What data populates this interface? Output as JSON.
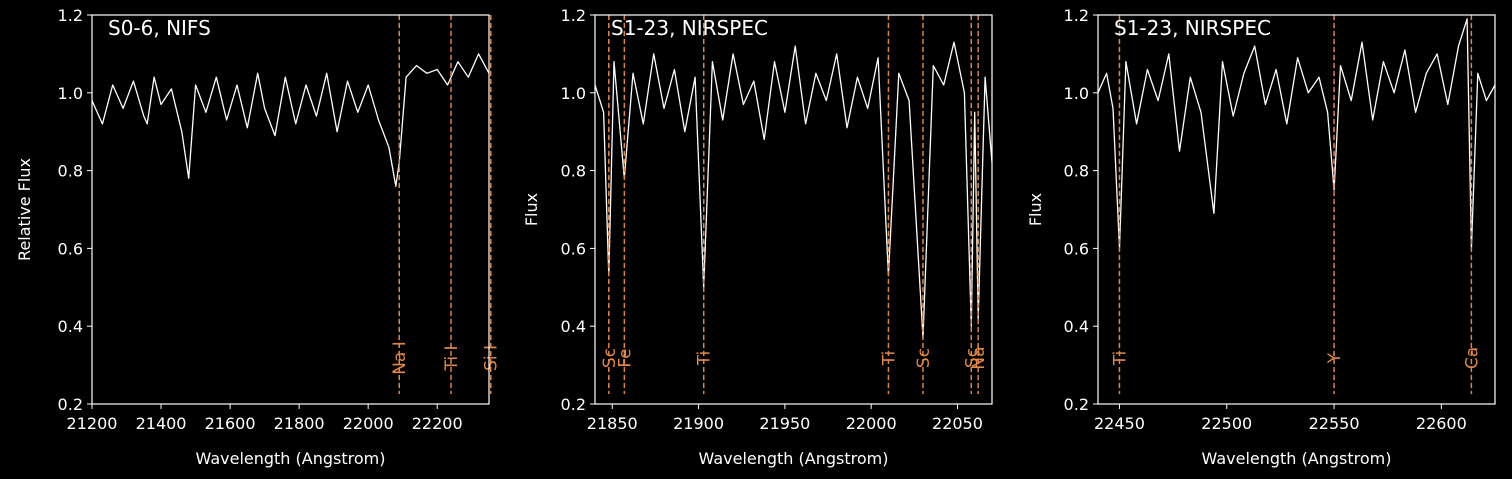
{
  "colors": {
    "background": "#000000",
    "axes": "#ffffff",
    "spectrum": "#ffffff",
    "line_marker": "#e0874a"
  },
  "chart_data": [
    {
      "type": "line",
      "title": "S0-6, NIFS",
      "xlabel": "Wavelength (Angstrom)",
      "ylabel": "Relative Flux",
      "xlim": [
        21200,
        22350
      ],
      "ylim": [
        0.2,
        1.2
      ],
      "xticks": [
        21200,
        21400,
        21600,
        21800,
        22000,
        22200
      ],
      "yticks": [
        0.2,
        0.4,
        0.6,
        0.8,
        1.0,
        1.2
      ],
      "xtick_labels": [
        "21200",
        "21400",
        "21600",
        "21800",
        "22000",
        "22200"
      ],
      "ytick_labels": [
        "0.2",
        "0.4",
        "0.6",
        "0.8",
        "1.0",
        "1.2"
      ],
      "lines": [
        {
          "label": "Si I",
          "x": 22355
        },
        {
          "label": "Na I",
          "x": 22090
        },
        {
          "label": "Ti I",
          "x": 22240
        }
      ],
      "series": [
        {
          "x": [
            21200,
            21230,
            21260,
            21290,
            21320,
            21350,
            21360,
            21380,
            21400,
            21430,
            21460,
            21480,
            21500,
            21530,
            21560,
            21590,
            21620,
            21650,
            21680,
            21700,
            21730,
            21760,
            21790,
            21820,
            21850,
            21880,
            21910,
            21940,
            21970,
            22000,
            22030,
            22060,
            22080,
            22090,
            22110,
            22140,
            22170,
            22200,
            22230,
            22260,
            22290,
            22320,
            22350
          ],
          "y": [
            0.98,
            0.92,
            1.02,
            0.96,
            1.03,
            0.94,
            0.92,
            1.04,
            0.97,
            1.01,
            0.9,
            0.78,
            1.02,
            0.95,
            1.04,
            0.93,
            1.02,
            0.91,
            1.05,
            0.96,
            0.89,
            1.04,
            0.92,
            1.02,
            0.94,
            1.05,
            0.9,
            1.03,
            0.95,
            1.02,
            0.93,
            0.86,
            0.76,
            0.82,
            1.04,
            1.07,
            1.05,
            1.06,
            1.02,
            1.08,
            1.04,
            1.1,
            1.05
          ]
        }
      ]
    },
    {
      "type": "line",
      "title": "S1-23, NIRSPEC",
      "xlabel": "Wavelength (Angstrom)",
      "ylabel": "Flux",
      "xlim": [
        21840,
        22070
      ],
      "ylim": [
        0.2,
        1.2
      ],
      "xticks": [
        21850,
        21900,
        21950,
        22000,
        22050
      ],
      "yticks": [
        0.2,
        0.4,
        0.6,
        0.8,
        1.0,
        1.2
      ],
      "xtick_labels": [
        "21850",
        "21900",
        "21950",
        "22000",
        "22050"
      ],
      "ytick_labels": [
        "0.2",
        "0.4",
        "0.6",
        "0.8",
        "1.0",
        "1.2"
      ],
      "lines": [
        {
          "label": "Sc",
          "x": 21848,
          "depth": 0.53
        },
        {
          "label": "Fe",
          "x": 21857,
          "depth": 0.78
        },
        {
          "label": "Ti",
          "x": 21903,
          "depth": 0.5
        },
        {
          "label": "Ti",
          "x": 22010,
          "depth": 0.53
        },
        {
          "label": "Sc",
          "x": 22030,
          "depth": 0.37
        },
        {
          "label": "Sc",
          "x": 22058,
          "depth": 0.4
        },
        {
          "label": "Na",
          "x": 22062,
          "depth": 0.42
        }
      ],
      "series": [
        {
          "x": [
            21840,
            21845,
            21848,
            21851,
            21857,
            21862,
            21868,
            21874,
            21880,
            21886,
            21892,
            21898,
            21903,
            21908,
            21914,
            21920,
            21926,
            21932,
            21938,
            21944,
            21950,
            21956,
            21962,
            21968,
            21974,
            21980,
            21986,
            21992,
            21998,
            22004,
            22010,
            22016,
            22022,
            22030,
            22036,
            22042,
            22048,
            22054,
            22058,
            22060,
            22062,
            22066,
            22070
          ],
          "y": [
            1.02,
            0.95,
            0.53,
            1.08,
            0.78,
            1.05,
            0.92,
            1.1,
            0.96,
            1.06,
            0.9,
            1.04,
            0.5,
            1.08,
            0.93,
            1.1,
            0.97,
            1.03,
            0.88,
            1.08,
            0.95,
            1.12,
            0.92,
            1.05,
            0.98,
            1.1,
            0.91,
            1.04,
            0.96,
            1.09,
            0.53,
            1.05,
            0.98,
            0.37,
            1.07,
            1.02,
            1.13,
            1.0,
            0.4,
            0.95,
            0.42,
            1.04,
            0.82
          ]
        }
      ]
    },
    {
      "type": "line",
      "title": "S1-23, NIRSPEC",
      "xlabel": "Wavelength (Angstrom)",
      "ylabel": "Flux",
      "xlim": [
        22440,
        22625
      ],
      "ylim": [
        0.2,
        1.2
      ],
      "xticks": [
        22450,
        22500,
        22550,
        22600
      ],
      "yticks": [
        0.2,
        0.4,
        0.6,
        0.8,
        1.0,
        1.2
      ],
      "xtick_labels": [
        "22450",
        "22500",
        "22550",
        "22600"
      ],
      "ytick_labels": [
        "0.2",
        "0.4",
        "0.6",
        "0.8",
        "1.0",
        "1.2"
      ],
      "lines": [
        {
          "label": "Ti",
          "x": 22450,
          "depth": 0.6
        },
        {
          "label": "Y",
          "x": 22550,
          "depth": 0.75
        },
        {
          "label": "Ca",
          "x": 22614,
          "depth": 0.6
        }
      ],
      "series": [
        {
          "x": [
            22440,
            22444,
            22447,
            22450,
            22453,
            22458,
            22463,
            22468,
            22473,
            22478,
            22483,
            22488,
            22494,
            22498,
            22503,
            22508,
            22513,
            22518,
            22523,
            22528,
            22533,
            22538,
            22543,
            22547,
            22550,
            22553,
            22558,
            22563,
            22568,
            22573,
            22578,
            22583,
            22588,
            22593,
            22598,
            22603,
            22608,
            22612,
            22614,
            22617,
            22621,
            22625
          ],
          "y": [
            1.0,
            1.05,
            0.96,
            0.6,
            1.08,
            0.92,
            1.06,
            0.98,
            1.1,
            0.85,
            1.04,
            0.95,
            0.69,
            1.08,
            0.94,
            1.05,
            1.12,
            0.97,
            1.06,
            0.92,
            1.09,
            1.0,
            1.04,
            0.95,
            0.75,
            1.07,
            0.98,
            1.13,
            0.93,
            1.08,
            1.0,
            1.11,
            0.95,
            1.05,
            1.1,
            0.97,
            1.12,
            1.19,
            0.6,
            1.05,
            0.98,
            1.02
          ]
        }
      ]
    }
  ]
}
